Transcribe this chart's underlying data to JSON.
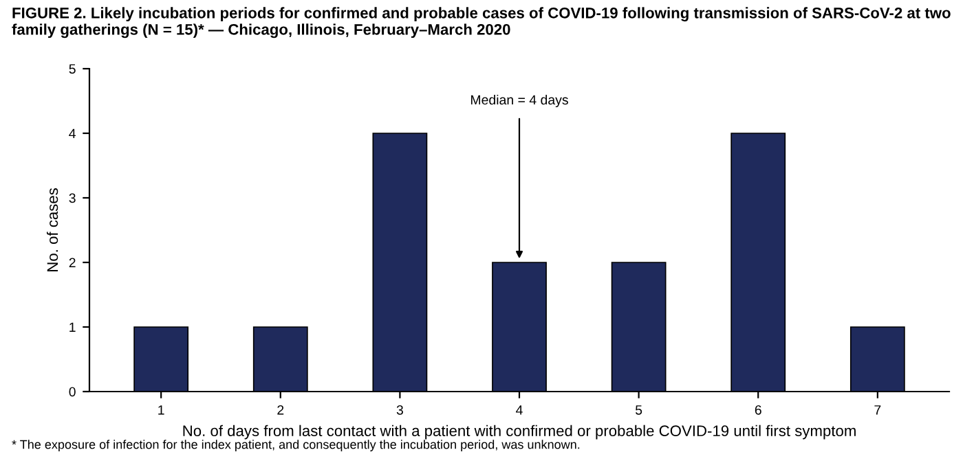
{
  "chart_data": {
    "type": "bar",
    "title": "FIGURE 2. Likely incubation periods for confirmed and probable cases of COVID-19 following transmission of SARS-CoV-2 at two family gatherings (N = 15)* — Chicago, Illinois, February–March 2020",
    "xlabel": "No. of days from last contact with a patient with confirmed or probable COVID-19 until first symptom",
    "ylabel": "No. of cases",
    "categories": [
      "1",
      "2",
      "3",
      "4",
      "5",
      "6",
      "7"
    ],
    "values": [
      1,
      1,
      4,
      2,
      2,
      4,
      1
    ],
    "color": "#1f2a5c",
    "ylim": [
      0,
      5
    ],
    "yticks": [
      0,
      1,
      2,
      3,
      4,
      5
    ],
    "grid": false,
    "legend": false,
    "annotations": [
      {
        "text": "Median = 4 days",
        "x": "4",
        "y": 2
      },
      "* The exposure of infection for the index patient, and consequently the incubation period, was unknown."
    ]
  }
}
